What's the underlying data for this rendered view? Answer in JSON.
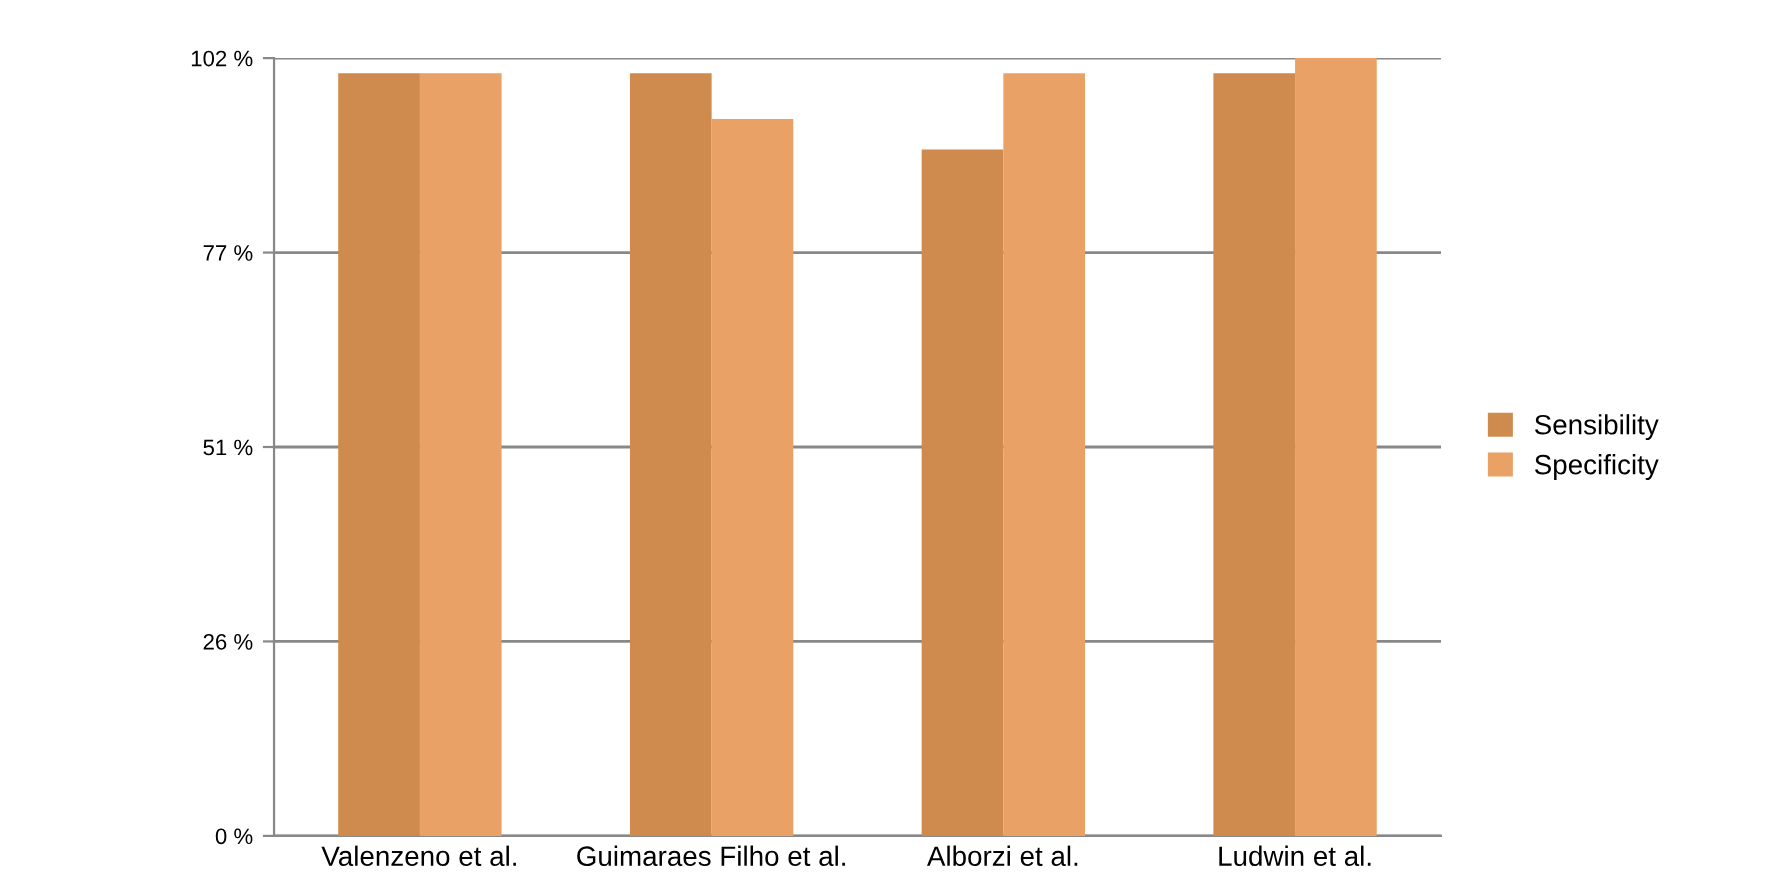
{
  "chart_data": {
    "type": "bar",
    "categories": [
      "Valenzeno et al.",
      "Guimaraes Filho et al.",
      "Alborzi et al.",
      "Ludwin et al."
    ],
    "series": [
      {
        "name": "Sensibility",
        "color": "#cf8a4e",
        "values": [
          100,
          100,
          90,
          100
        ]
      },
      {
        "name": "Specificity",
        "color": "#e9a166",
        "values": [
          100,
          94,
          100,
          102
        ]
      }
    ],
    "ylim": [
      0,
      102
    ],
    "yticks": [
      {
        "value": 0,
        "label": "0 %"
      },
      {
        "value": 25.5,
        "label": "26 %"
      },
      {
        "value": 51,
        "label": "51 %"
      },
      {
        "value": 76.5,
        "label": "77 %"
      },
      {
        "value": 102,
        "label": "102 %"
      }
    ],
    "grid": "y",
    "legend": "right"
  }
}
